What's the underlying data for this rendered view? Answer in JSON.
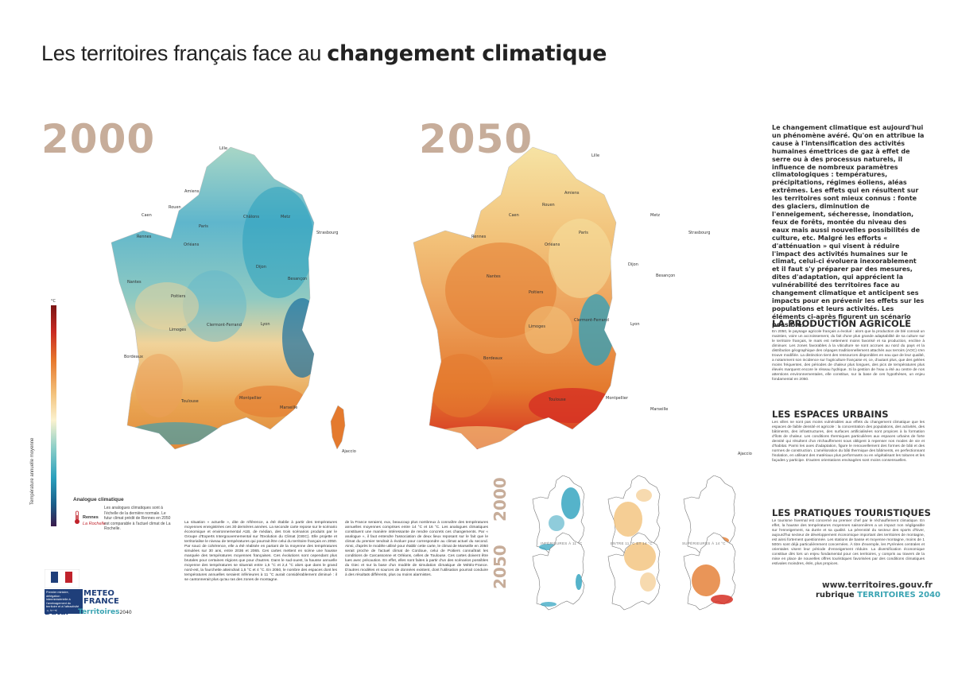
{
  "title": {
    "normal": "Les territoires français face au",
    "bold": "changement climatique"
  },
  "years": {
    "left": "2000",
    "right": "2050"
  },
  "colors": {
    "cold": "#2aa0bd",
    "mild": "#f2c27a",
    "warm": "#e88a35",
    "hot": "#d62f23",
    "year": "#c7ad9a",
    "accent": "#3aa4b3"
  },
  "legend": {
    "scale_label": "Température annuelle moyenne",
    "unit": "°C",
    "analog_title": "Analogue climatique",
    "analog_text": "Les analogues climatiques sont à l'échelle de la dernière normale. Le futur climat prédit de Rennes en 2050 est comparable à l'actuel climat de La Rochelle.",
    "analog_city": "Rennes",
    "analog_city2": "La Rochelle"
  },
  "cities_2000": [
    "Lille",
    "Amiens",
    "Rouen",
    "Caen",
    "Paris",
    "Châlons",
    "Metz",
    "Strasbourg",
    "Rennes",
    "Orléans",
    "Nantes",
    "Dijon",
    "Besançon",
    "Poitiers",
    "Clermont-Ferrand",
    "Limoges",
    "Lyon",
    "Bordeaux",
    "Toulouse",
    "Montpellier",
    "Marseille",
    "Ajaccio"
  ],
  "cities_2050": [
    "Lille",
    "Paris",
    "Amiens",
    "Rouen",
    "Caen",
    "Metz",
    "Strasbourg",
    "Rennes",
    "Orléans",
    "Nantes",
    "Dijon",
    "Besançon",
    "Poitiers",
    "Limoges",
    "Clermont-Ferrand",
    "Lyon",
    "Bordeaux",
    "Toulouse",
    "Montpellier",
    "Marseille",
    "Ajaccio"
  ],
  "mini_maps": {
    "year_top": "2000",
    "year_bottom": "2050",
    "captions": [
      "INFÉRIEURES À 11 °C",
      "ENTRE 11 °C ET 14 °C",
      "SUPÉRIEURES À 14 °C"
    ]
  },
  "body_columns": [
    "La situation « actuelle », dite de référence, a été établie à partir des températures moyennes enregistrées ces 30 dernières années. La seconde carte repose sur le scénario économique et environnemental A1B, de médian, des trois scénarios produits par le Groupe d'Experts Intergouvernemental sur l'Evolution du Climat (GIEC). Elle projette et territorialise le niveau de températures qui pourrait être celui du territoire français en 2050. Par souci de cohérence, elle a été réalisée en partant de la moyenne des températures simulées sur 30 ans, entre 2036 et 2065. Ces cartes mettent en scène une hausse marquée des températures moyennes françaises. Ces évolutions sont cependant plus brutales pour certaines régions que pour d'autres. Dans le sud-ouest, la hausse annuelle moyenne des températures se situerait entre 1,5 °C et 2,4 °C alors que dans le grand nord-est, la fourchette atteindrait 1,5 °C et 4 °C. En 2050, le nombre des espaces dont les températures annuelles seraient inférieures à 11 °C aurait considérablement diminué : il se cantonnerait plus qu'au ras des zones de montagne.",
    "de la France seraient, eux, beaucoup plus nombreux à connaître des températures annuelles moyennes comprises entre 14 °C et 16 °C. Les analogues climatiques constituent une manière intéressante de rendre concrets ces changements. Par « analogue », il faut entendre l'association de deux lieux reposant sur le fait que le climat du premier tendrait à évoluer pour correspondre au climat actuel du second. Ainsi, d'après le modèle utilisé pour établir cette carte, le climat de Marseille en 2050 serait proche de l'actuel climat de Cordoue, celui de Poitiers connaîtrait les conditions de Carcassonne et Orléans, celles de Toulouse. Ces cartes doivent être lues avec précaution. En effet, elles sont faites à partir d'un des scénarios possibles du Giec et sur la base d'un modèle de simulation climatique de Météo-France. D'autres modèles et sources de données existent, dont l'utilisation pourrait conduire à des résultats différents, plus ou moins alarmistes."
  ],
  "intro": "Le changement climatique est aujourd'hui un phénomène avéré. Qu'on en attribue la cause à l'intensification des activités humaines émettrices de gaz à effet de serre ou à des processus naturels, il influence de nombreux paramètres climatologiques : températures, précipitations, régimes éoliens, aléas extrêmes. Les effets qui en résultent sur les territoires sont mieux connus : fonte des glaciers, diminution de l'enneigement, sécheresse, inondation, feux de forêts, montée du niveau des eaux mais aussi nouvelles possibilités de culture, etc. Malgré les efforts « d'atténuation » qui visent à réduire l'impact des activités humaines sur le climat, celui-ci évoluera inexorablement et il faut s'y préparer par des mesures, dites d'adaptation, qui apprécient la vulnérabilité des territoires face au changement climatique et anticipent ses impacts pour en prévenir les effets sur les populations et leurs activités. Les éléments ci-après figurent un scénario possible.",
  "sections": [
    {
      "title": "LA PRODUCTION AGRICOLE",
      "text": "En 2050, le paysage agricole français a évolué : alors que la production de blé connait un maintien, voire un accroissement, du fait d'une plus grande adaptabilité de sa culture sur le territoire français, le maïs est nettement moins favorisé et sa production, encline à diminuer. Les zones favorables à la viticulture se sont accrues au nord du pays et la distribution géographique des cépages traditionnellement attachés aux terroirs (AOC) s'en trouve modifiée. La distinction tient des ressources disponibles en eau que de leur qualité, a notamment son incidence sur l'agriculture française et, ce, d'autant plus, que des gelées moins fréquentes, des périodes de chaleur plus longues, des pics de températures plus élevés marquent encore le réseau hydrique. Si la gestion de l'eau a été au centre de nos attentions environnementales, elle constitue, sur la base de ces hypothèses, un enjeu fondamental en 2050."
    },
    {
      "title": "LES ESPACES URBAINS",
      "text": "Les villes ne sont pas moins vulnérables aux effets du changement climatique que les espaces de faible densité et agricole : la concentration des populations, des activités, des bâtiments, des infrastructures, des surfaces artificialisées sont propices à la formation d'îlots de chaleur. Les conditions thermiques particulières aux espaces urbains de forte densité qui résultent d'un réchauffement sous obligent à repenser nos modes de vie et d'habitat. Parmi les axes d'adaptation, figure le renouvellement des formes de bâti et des normes de construction. L'amélioration du bâti thermique des bâtiments, en perfectionnant l'isolation, en utilisant des matériaux plus performants ou en végétalisant les toitures et les façades y participe. D'autres orientations envisagées sont moins consensuelles."
    },
    {
      "title": "LES PRATIQUES TOURISTIQUES",
      "text": "Le tourisme hivernal est concerné au premier chef par le réchauffement climatique. En effet, la hausse des températures moyennes saisonnières a un impact non négligeable sur l'enneigement, sa durée et sa qualité. La pérennité du secteur des sports d'hiver, aujourd'hui secteur de développement économique important des territoires de montagne, est ainsi fortement questionnée. Les stations de basse et moyenne montagne, moins de 1 500m sont déjà particulièrement concernées. À titre d'exemple, les Pyrénées centrales et orientales visent leur période d'enneigement réduire. La diversification économique constitue dès lors un enjeu fondamental pour ces territoires, y compris au travers de la mise en place de nouvelles offres touristiques favorisées par des conditions climatiques estivales moindres, étés, plus propices."
    }
  ],
  "footer": {
    "url": "www.territoires.gouv.fr",
    "rubrique": "rubrique",
    "rubrique_name": "TERRITOIRES 2040",
    "gov": "Premier ministre, délégation interministérielle à l'aménagement du territoire et à l'attractivité régionale",
    "meteo1": "METEO",
    "meteo2": "FRANCE",
    "datar": "Datar",
    "territoires": "Territoires",
    "territoires_year": "2040"
  }
}
